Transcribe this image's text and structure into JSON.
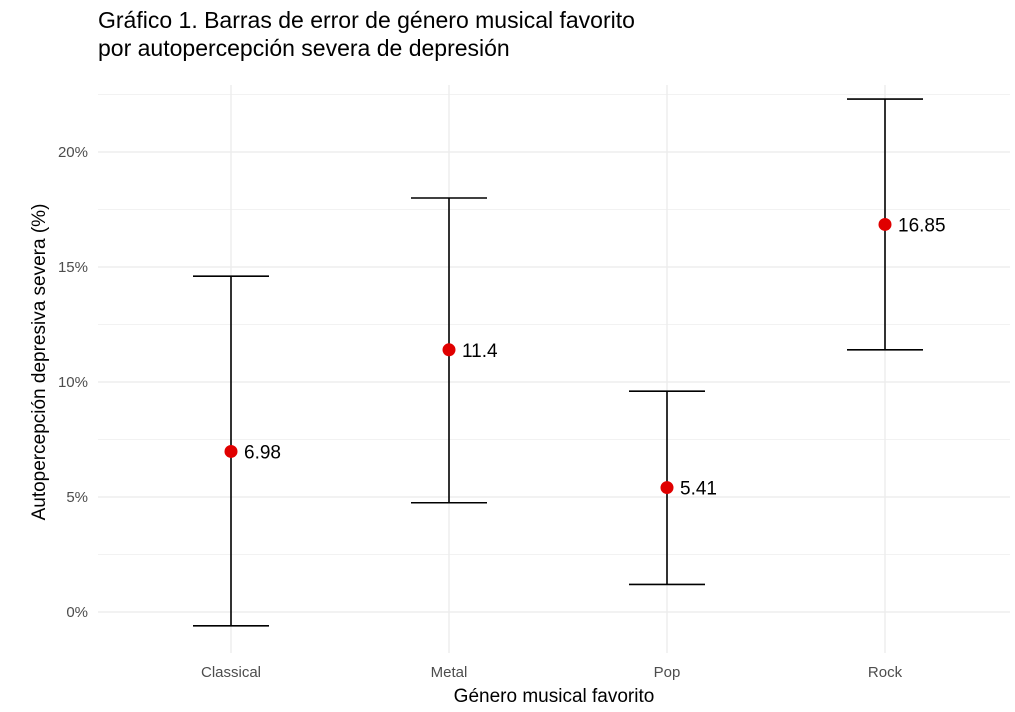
{
  "title_line1": "Gráfico 1. Barras de error de género musical favorito",
  "title_line2": "por autopercepción severa de depresión",
  "chart_data": {
    "type": "scatter",
    "subtype": "errorbar",
    "title": "Gráfico 1. Barras de error de género musical favorito por autopercepción severa de depresión",
    "xlabel": "Género musical favorito",
    "ylabel": "Autopercepción depresiva severa (%)",
    "categories": [
      "Classical",
      "Metal",
      "Pop",
      "Rock"
    ],
    "values": [
      6.98,
      11.4,
      5.41,
      16.85
    ],
    "labels": [
      "6.98",
      "11.4",
      "5.41",
      "16.85"
    ],
    "lower": [
      -0.6,
      4.75,
      1.2,
      11.4
    ],
    "upper": [
      14.6,
      18.0,
      9.6,
      22.3
    ],
    "ylim": [
      -1.6,
      23.5
    ],
    "yticks": [
      0,
      5,
      10,
      15,
      20
    ],
    "ytick_labels": [
      "0%",
      "5%",
      "10%",
      "15%",
      "20%"
    ],
    "point_color": "#e00000",
    "grid": true,
    "legend": "none"
  }
}
